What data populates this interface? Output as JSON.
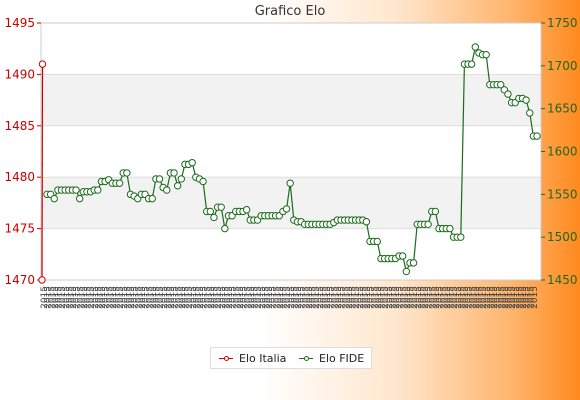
{
  "chart_data": {
    "type": "line",
    "title": "Grafico Elo",
    "xlabel": "",
    "ylabel": "",
    "x_tick_label": "2015",
    "y_left": {
      "min": 1470,
      "max": 1495,
      "ticks": [
        1470,
        1475,
        1480,
        1485,
        1490,
        1495
      ],
      "color": "#cc0000"
    },
    "y_right": {
      "min": 1450,
      "max": 1750,
      "ticks": [
        1450,
        1500,
        1550,
        1600,
        1650,
        1700,
        1750
      ],
      "color": "#226622"
    },
    "grid": true,
    "legend_position": "bottom",
    "series": [
      {
        "name": "Elo Italia",
        "axis": "left",
        "color": "#cc0000",
        "values": [
          1470,
          1491
        ]
      },
      {
        "name": "Elo FIDE",
        "axis": "right",
        "color": "#1a6b1a",
        "values": [
          1550,
          1550,
          1545,
          1555,
          1555,
          1555,
          1555,
          1555,
          1555,
          1545,
          1553,
          1553,
          1553,
          1555,
          1555,
          1565,
          1565,
          1567,
          1563,
          1563,
          1563,
          1575,
          1575,
          1550,
          1548,
          1545,
          1550,
          1550,
          1545,
          1545,
          1568,
          1568,
          1558,
          1555,
          1575,
          1575,
          1560,
          1568,
          1585,
          1585,
          1587,
          1570,
          1568,
          1565,
          1530,
          1530,
          1523,
          1535,
          1535,
          1510,
          1525,
          1525,
          1530,
          1530,
          1530,
          1532,
          1520,
          1520,
          1520,
          1525,
          1525,
          1525,
          1525,
          1525,
          1525,
          1530,
          1533,
          1563,
          1520,
          1518,
          1518,
          1515,
          1515,
          1515,
          1515,
          1515,
          1515,
          1515,
          1515,
          1517,
          1520,
          1520,
          1520,
          1520,
          1520,
          1520,
          1520,
          1520,
          1518,
          1495,
          1495,
          1495,
          1475,
          1475,
          1475,
          1475,
          1475,
          1478,
          1478,
          1460,
          1470,
          1470,
          1515,
          1515,
          1515,
          1515,
          1530,
          1530,
          1510,
          1510,
          1510,
          1510,
          1500,
          1500,
          1500,
          1702,
          1702,
          1702,
          1722,
          1715,
          1713,
          1713,
          1678,
          1678,
          1678,
          1678,
          1672,
          1667,
          1657,
          1657,
          1662,
          1662,
          1660,
          1645,
          1618,
          1618
        ]
      }
    ]
  }
}
